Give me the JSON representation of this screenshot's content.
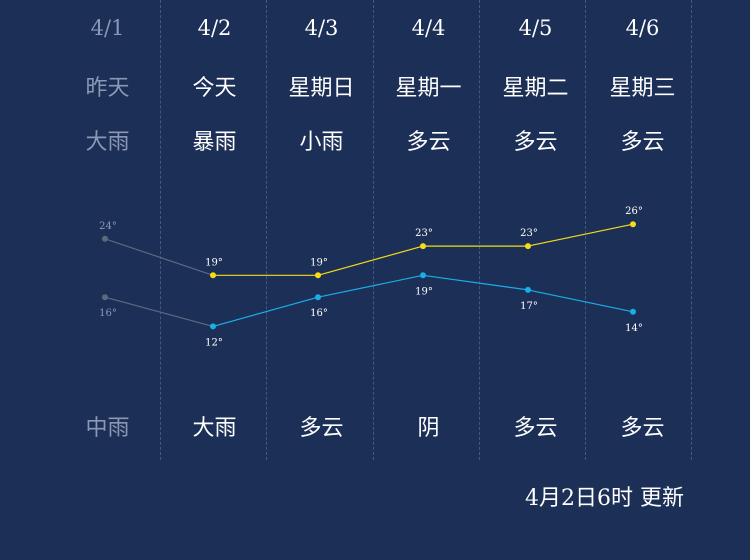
{
  "days": [
    {
      "date": "4/1",
      "day": "昨天",
      "weather_day": "大雨",
      "weather_night": "中雨",
      "high": 24,
      "low": 16,
      "past": true
    },
    {
      "date": "4/2",
      "day": "今天",
      "weather_day": "暴雨",
      "weather_night": "大雨",
      "high": 19,
      "low": 12,
      "past": false
    },
    {
      "date": "4/3",
      "day": "星期日",
      "weather_day": "小雨",
      "weather_night": "多云",
      "high": 19,
      "low": 16,
      "past": false
    },
    {
      "date": "4/4",
      "day": "星期一",
      "weather_day": "多云",
      "weather_night": "阴",
      "high": 23,
      "low": 19,
      "past": false
    },
    {
      "date": "4/5",
      "day": "星期二",
      "weather_day": "多云",
      "weather_night": "多云",
      "high": 23,
      "low": 17,
      "past": false
    },
    {
      "date": "4/6",
      "day": "星期三",
      "weather_day": "多云",
      "weather_night": "多云",
      "high": 26,
      "low": 14,
      "past": false
    }
  ],
  "chart_data": {
    "type": "line",
    "x": [
      "4/1",
      "4/2",
      "4/3",
      "4/4",
      "4/5",
      "4/6"
    ],
    "series": [
      {
        "name": "",
        "values": [
          24,
          19,
          19,
          23,
          23,
          26
        ],
        "color": "#f5dc16"
      },
      {
        "name": "",
        "values": [
          16,
          12,
          16,
          19,
          17,
          14
        ],
        "color": "#1aaee8"
      }
    ],
    "past_color": "#5a6a7e",
    "unit": "°"
  },
  "updated_text": "4月2日6时 更新"
}
